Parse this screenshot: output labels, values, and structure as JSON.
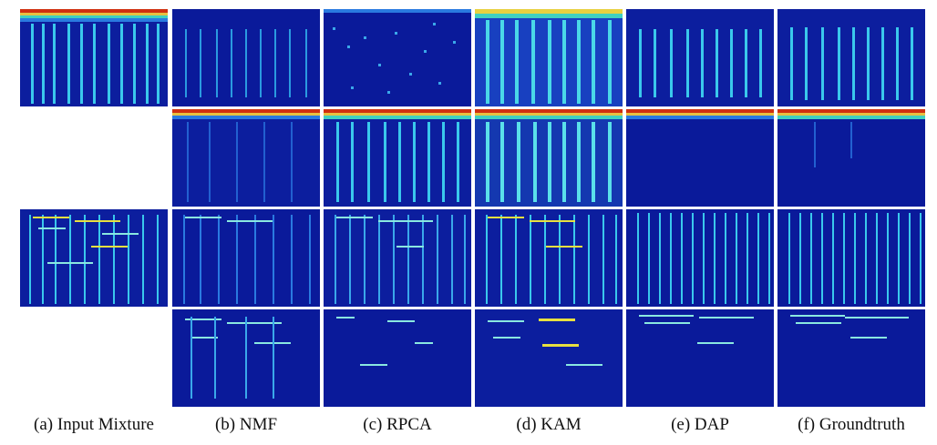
{
  "figure": {
    "columns": [
      {
        "id": "input",
        "caption": "(a) Input Mixture"
      },
      {
        "id": "nmf",
        "caption": "(b) NMF"
      },
      {
        "id": "rpca",
        "caption": "(c) RPCA"
      },
      {
        "id": "kam",
        "caption": "(d) KAM"
      },
      {
        "id": "dap",
        "caption": "(e) DAP"
      },
      {
        "id": "gt",
        "caption": "(f) Groundtruth"
      }
    ],
    "rows": [
      {
        "id": "example1-source1",
        "panels": [
          "input",
          "nmf",
          "rpca",
          "kam",
          "dap",
          "gt"
        ]
      },
      {
        "id": "example1-source2",
        "panels": [
          "nmf",
          "rpca",
          "kam",
          "dap",
          "gt"
        ]
      },
      {
        "id": "example2-source1",
        "panels": [
          "input",
          "nmf",
          "rpca",
          "kam",
          "dap",
          "gt"
        ]
      },
      {
        "id": "example2-source2",
        "panels": [
          "nmf",
          "rpca",
          "kam",
          "dap",
          "gt"
        ]
      }
    ],
    "colormap": {
      "background": "#0a1a9a",
      "low": "#1f4fd6",
      "mid": "#2fc0e8",
      "high": "#e8e040",
      "peak": "#d03010"
    }
  }
}
